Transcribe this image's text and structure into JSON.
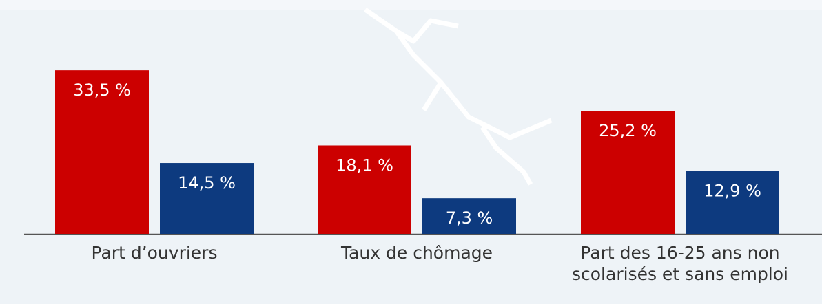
{
  "chart_data": {
    "type": "bar",
    "categories": [
      "Part d’ouvriers",
      "Taux de chômage",
      "Part des 16-25 ans non scolarisés et sans emploi"
    ],
    "series": [
      {
        "color": "#cc0000",
        "values": [
          33.5,
          18.1,
          25.2
        ],
        "value_labels": [
          "33,5 %",
          "18,1 %",
          "25,2 %"
        ]
      },
      {
        "color": "#0d3a7f",
        "values": [
          14.5,
          7.3,
          12.9
        ],
        "value_labels": [
          "14,5 %",
          "7,3 %",
          "12,9 %"
        ]
      }
    ]
  }
}
